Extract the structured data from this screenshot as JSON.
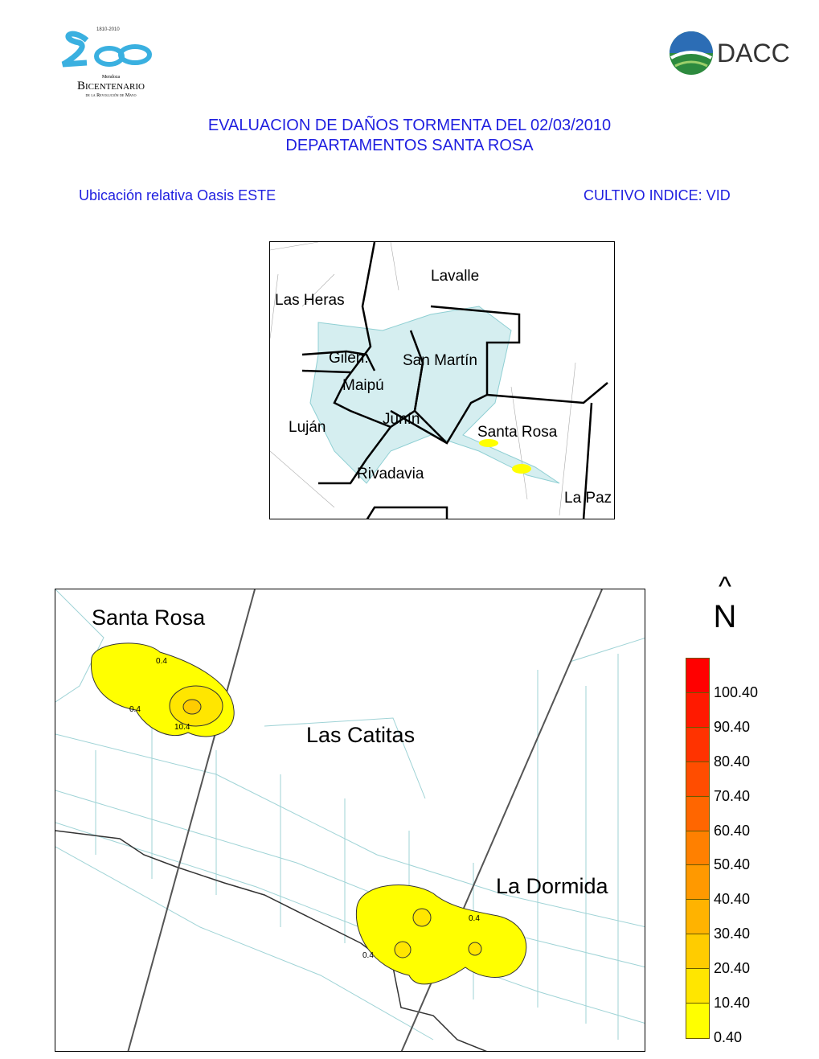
{
  "logos": {
    "left": {
      "years": "1810-2010",
      "line1": "Mendoza",
      "line2": "Bicentenario",
      "line3": "de la Revolución de Mayo"
    },
    "right": {
      "text": "DACC"
    }
  },
  "header": {
    "title_line1": "EVALUACION DE DAÑOS TORMENTA DEL 02/03/2010",
    "title_line2": "DEPARTAMENTOS SANTA ROSA",
    "subtitle_left": "Ubicación relativa Oasis ESTE",
    "subtitle_right": "CULTIVO INDICE: VID"
  },
  "inset_map": {
    "labels": [
      "Lavalle",
      "Las Heras",
      "Gilén.",
      "San Martín",
      "Maipú",
      "Luján",
      "Junín",
      "Santa Rosa",
      "Rivadavia",
      "La Paz"
    ]
  },
  "main_map": {
    "places": [
      "Santa Rosa",
      "Las Catitas",
      "La Dormida"
    ],
    "contour_labels": [
      "0.4",
      "0.4",
      "10.4",
      "0.4",
      "0.4"
    ],
    "north_arrow": {
      "symbol": "^",
      "letter": "N"
    }
  },
  "legend": {
    "labels": [
      "100.40",
      "90.40",
      "80.40",
      "70.40",
      "60.40",
      "50.40",
      "40.40",
      "30.40",
      "20.40",
      "10.40",
      "0.40"
    ],
    "colors": [
      "#ff0000",
      "#ff1a00",
      "#ff3300",
      "#ff4d00",
      "#ff6600",
      "#ff8000",
      "#ff9900",
      "#ffb300",
      "#ffcc00",
      "#ffe600",
      "#ffff00"
    ]
  }
}
